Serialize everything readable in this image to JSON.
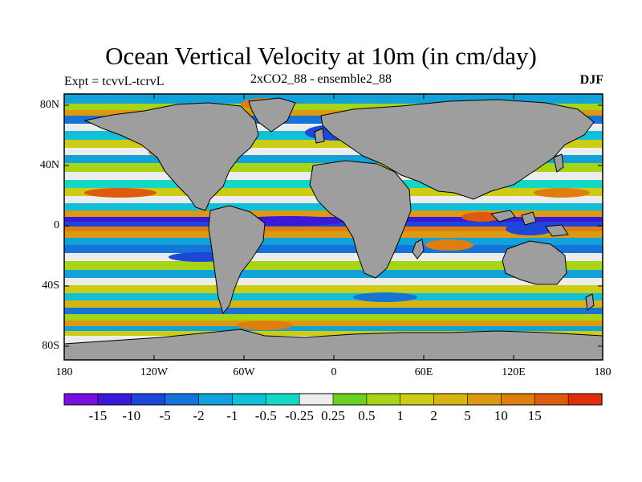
{
  "header": {
    "title": "Ocean Vertical Velocity at 10m (in cm/day)",
    "subtitle": "2xCO2_88 - ensemble2_88",
    "experiment": "Expt = tcvvL-tcrvL",
    "season": "DJF"
  },
  "map": {
    "lon_labels": [
      "180",
      "120W",
      "60W",
      "0",
      "60E",
      "120E",
      "180"
    ],
    "lat_labels": [
      "80N",
      "40N",
      "0",
      "40S",
      "80S"
    ],
    "land_color": "#9e9e9e",
    "ocean_background": "#ececec"
  },
  "colorbar": {
    "colors": [
      "#7a10e0",
      "#3c18d8",
      "#1e46d8",
      "#1474d8",
      "#11a2da",
      "#10c0d8",
      "#14d8c4",
      "#ececec",
      "#6ad21e",
      "#a8d418",
      "#cccc14",
      "#d8b412",
      "#dc9a12",
      "#de7e0e",
      "#de5a0e",
      "#de2e0a"
    ],
    "labels": [
      "-15",
      "-10",
      "-5",
      "-2",
      "-1",
      "-0.5",
      "-0.25",
      "0.25",
      "0.5",
      "1",
      "2",
      "5",
      "10",
      "15"
    ]
  }
}
